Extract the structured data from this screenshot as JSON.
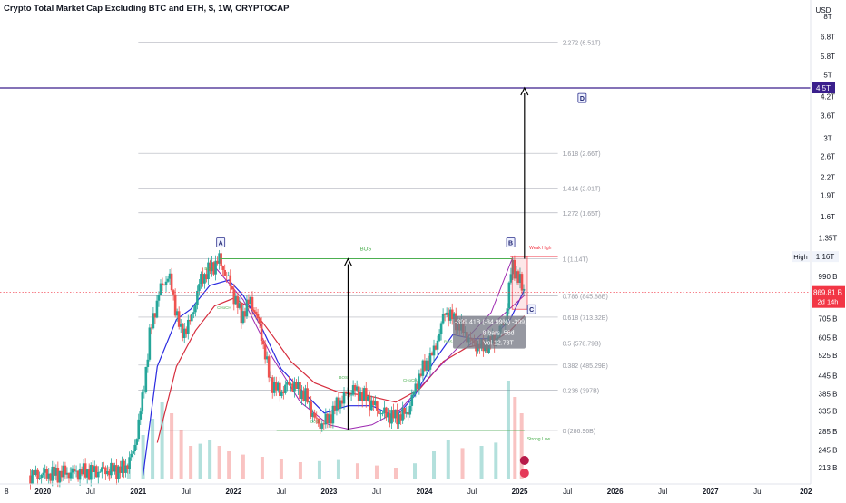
{
  "header": {
    "title": "Crypto Total Market Cap Excluding BTC and ETH, $, 1W, CRYPTOCAP",
    "currency": "USD"
  },
  "chart_data": {
    "type": "candlestick",
    "y_scale": "log",
    "ylim": [
      195000000000,
      8000000000000
    ],
    "y_ticks": [
      {
        "value": 8000000000000.0,
        "label": "8T"
      },
      {
        "value": 6800000000000.0,
        "label": "6.8T"
      },
      {
        "value": 5800000000000.0,
        "label": "5.8T"
      },
      {
        "value": 5000000000000.0,
        "label": "5T"
      },
      {
        "value": 4200000000000.0,
        "label": "4.2T"
      },
      {
        "value": 3600000000000.0,
        "label": "3.6T"
      },
      {
        "value": 3000000000000.0,
        "label": "3T"
      },
      {
        "value": 2600000000000.0,
        "label": "2.6T"
      },
      {
        "value": 2200000000000.0,
        "label": "2.2T"
      },
      {
        "value": 1900000000000.0,
        "label": "1.9T"
      },
      {
        "value": 1600000000000.0,
        "label": "1.6T"
      },
      {
        "value": 1350000000000.0,
        "label": "1.35T"
      },
      {
        "value": 990000000000.0,
        "label": "990 B"
      },
      {
        "value": 705000000000.0,
        "label": "705 B"
      },
      {
        "value": 605000000000.0,
        "label": "605 B"
      },
      {
        "value": 525000000000.0,
        "label": "525 B"
      },
      {
        "value": 445000000000.0,
        "label": "445 B"
      },
      {
        "value": 385000000000.0,
        "label": "385 B"
      },
      {
        "value": 335000000000.0,
        "label": "335 B"
      },
      {
        "value": 285000000000.0,
        "label": "285 B"
      },
      {
        "value": 245000000000.0,
        "label": "245 B"
      },
      {
        "value": 213000000000.0,
        "label": "213 B"
      }
    ],
    "x_ticks": [
      {
        "t": 2019.62,
        "label": "8"
      },
      {
        "t": 2020.0,
        "label": "2020"
      },
      {
        "t": 2020.5,
        "label": "Jul"
      },
      {
        "t": 2021.0,
        "label": "2021"
      },
      {
        "t": 2021.5,
        "label": "Jul"
      },
      {
        "t": 2022.0,
        "label": "2022"
      },
      {
        "t": 2022.5,
        "label": "Jul"
      },
      {
        "t": 2023.0,
        "label": "2023"
      },
      {
        "t": 2023.5,
        "label": "Jul"
      },
      {
        "t": 2024.0,
        "label": "2024"
      },
      {
        "t": 2024.5,
        "label": "Jul"
      },
      {
        "t": 2025.0,
        "label": "2025"
      },
      {
        "t": 2025.5,
        "label": "Jul"
      },
      {
        "t": 2026.0,
        "label": "2026"
      },
      {
        "t": 2026.5,
        "label": "Jul"
      },
      {
        "t": 2027.0,
        "label": "2027"
      },
      {
        "t": 2027.5,
        "label": "Jul"
      },
      {
        "t": 2028.0,
        "label": "202"
      }
    ],
    "xlim": [
      2019.55,
      2028.05
    ],
    "price_path": [
      [
        2019.85,
        200000000000
      ],
      [
        2020.85,
        210000000000
      ],
      [
        2020.95,
        240000000000
      ],
      [
        2021.05,
        380000000000
      ],
      [
        2021.12,
        620000000000
      ],
      [
        2021.22,
        880000000000
      ],
      [
        2021.32,
        1000000000000
      ],
      [
        2021.45,
        620000000000
      ],
      [
        2021.55,
        690000000000
      ],
      [
        2021.65,
        960000000000
      ],
      [
        2021.75,
        1050000000000
      ],
      [
        2021.85,
        1130000000000
      ],
      [
        2021.95,
        950000000000
      ],
      [
        2022.08,
        720000000000
      ],
      [
        2022.18,
        820000000000
      ],
      [
        2022.28,
        650000000000
      ],
      [
        2022.38,
        430000000000
      ],
      [
        2022.48,
        390000000000
      ],
      [
        2022.6,
        420000000000
      ],
      [
        2022.75,
        380000000000
      ],
      [
        2022.88,
        300000000000
      ],
      [
        2022.98,
        310000000000
      ],
      [
        2023.1,
        360000000000
      ],
      [
        2023.25,
        400000000000
      ],
      [
        2023.4,
        370000000000
      ],
      [
        2023.55,
        330000000000
      ],
      [
        2023.7,
        320000000000
      ],
      [
        2023.82,
        330000000000
      ],
      [
        2023.95,
        450000000000
      ],
      [
        2024.1,
        540000000000
      ],
      [
        2024.22,
        750000000000
      ],
      [
        2024.35,
        680000000000
      ],
      [
        2024.5,
        580000000000
      ],
      [
        2024.6,
        560000000000
      ],
      [
        2024.75,
        600000000000
      ],
      [
        2024.85,
        700000000000
      ],
      [
        2024.92,
        1100000000000
      ],
      [
        2024.98,
        980000000000
      ],
      [
        2025.05,
        869810000000
      ]
    ],
    "ema_fast_path": [
      [
        2021.05,
        200000000000
      ],
      [
        2021.2,
        480000000000
      ],
      [
        2021.4,
        700000000000
      ],
      [
        2021.55,
        760000000000
      ],
      [
        2021.75,
        920000000000
      ],
      [
        2021.95,
        960000000000
      ],
      [
        2022.1,
        850000000000
      ],
      [
        2022.3,
        650000000000
      ],
      [
        2022.5,
        470000000000
      ],
      [
        2022.7,
        400000000000
      ],
      [
        2022.95,
        330000000000
      ],
      [
        2023.2,
        350000000000
      ],
      [
        2023.45,
        350000000000
      ],
      [
        2023.7,
        320000000000
      ],
      [
        2023.9,
        380000000000
      ],
      [
        2024.1,
        500000000000
      ],
      [
        2024.3,
        620000000000
      ],
      [
        2024.5,
        600000000000
      ],
      [
        2024.7,
        600000000000
      ],
      [
        2024.9,
        700000000000
      ],
      [
        2025.05,
        890000000000
      ]
    ],
    "ema_slow_path": [
      [
        2021.2,
        260000000000
      ],
      [
        2021.4,
        480000000000
      ],
      [
        2021.6,
        640000000000
      ],
      [
        2021.8,
        780000000000
      ],
      [
        2022.0,
        830000000000
      ],
      [
        2022.2,
        760000000000
      ],
      [
        2022.4,
        620000000000
      ],
      [
        2022.6,
        500000000000
      ],
      [
        2022.85,
        420000000000
      ],
      [
        2023.1,
        390000000000
      ],
      [
        2023.4,
        380000000000
      ],
      [
        2023.7,
        360000000000
      ],
      [
        2023.95,
        400000000000
      ],
      [
        2024.2,
        500000000000
      ],
      [
        2024.45,
        560000000000
      ],
      [
        2024.7,
        580000000000
      ],
      [
        2024.9,
        640000000000
      ],
      [
        2025.05,
        720000000000
      ]
    ],
    "volume_scale_note": "relative",
    "volume": [
      [
        2020.1,
        0.08
      ],
      [
        2020.3,
        0.1
      ],
      [
        2020.5,
        0.12
      ],
      [
        2020.7,
        0.11
      ],
      [
        2020.9,
        0.14
      ],
      [
        2021.05,
        0.4
      ],
      [
        2021.15,
        0.55
      ],
      [
        2021.25,
        0.7
      ],
      [
        2021.35,
        0.6
      ],
      [
        2021.45,
        0.45
      ],
      [
        2021.55,
        0.3
      ],
      [
        2021.65,
        0.32
      ],
      [
        2021.75,
        0.35
      ],
      [
        2021.85,
        0.3
      ],
      [
        2021.95,
        0.25
      ],
      [
        2022.1,
        0.22
      ],
      [
        2022.3,
        0.2
      ],
      [
        2022.5,
        0.18
      ],
      [
        2022.7,
        0.15
      ],
      [
        2022.9,
        0.16
      ],
      [
        2023.1,
        0.17
      ],
      [
        2023.3,
        0.14
      ],
      [
        2023.5,
        0.12
      ],
      [
        2023.7,
        0.1
      ],
      [
        2023.9,
        0.14
      ],
      [
        2024.1,
        0.25
      ],
      [
        2024.25,
        0.35
      ],
      [
        2024.4,
        0.28
      ],
      [
        2024.6,
        0.3
      ],
      [
        2024.75,
        0.33
      ],
      [
        2024.88,
        0.9
      ],
      [
        2024.95,
        0.75
      ],
      [
        2025.02,
        0.6
      ]
    ],
    "fib_levels": [
      {
        "value": 6510000000000.0,
        "label": "2.272 (6.51T)"
      },
      {
        "value": 2660000000000.0,
        "label": "1.618 (2.66T)"
      },
      {
        "value": 2010000000000.0,
        "label": "1.414 (2.01T)"
      },
      {
        "value": 1650000000000.0,
        "label": "1.272 (1.65T)"
      },
      {
        "value": 1140000000000.0,
        "label": "1 (1.14T)"
      },
      {
        "value": 845880000000.0,
        "label": "0.786 (845.88B)"
      },
      {
        "value": 713320000000.0,
        "label": "0.618 (713.32B)"
      },
      {
        "value": 578790000000.0,
        "label": "0.5 (578.79B)"
      },
      {
        "value": 485290000000.0,
        "label": "0.382 (485.29B)"
      },
      {
        "value": 397000000000.0,
        "label": "0.236 (397B)"
      },
      {
        "value": 286960000000.0,
        "label": "0 (286.96B)"
      }
    ],
    "fib_x_range": [
      2021.0,
      2025.4
    ],
    "target_line": {
      "value": 4500000000000.0,
      "label": "4.5T"
    },
    "high_line": {
      "value": 1160000000000.0,
      "tag_left": "High",
      "tag_right": "1.16T",
      "chart_label": "Weak High"
    },
    "last_price": {
      "value": 869810000000,
      "label": "869.81 B",
      "countdown": "2d 14h"
    },
    "bos": {
      "label": "BOS",
      "value": 1140000000000.0,
      "x_range": [
        2021.85,
        2024.92
      ]
    },
    "strong_low": {
      "label": "Strong Low",
      "value": 287000000000.0,
      "x_range": [
        2022.45,
        2025.05
      ]
    },
    "points": [
      {
        "label": "A",
        "t": 2021.86,
        "value": 1300000000000.0
      },
      {
        "label": "B",
        "t": 2024.9,
        "value": 1300000000000.0
      },
      {
        "label": "C",
        "t": 2025.12,
        "value": 760000000000.0
      },
      {
        "label": "D",
        "t": 2025.65,
        "value": 4150000000000.0
      }
    ],
    "arrows": [
      {
        "t": 2023.2,
        "from": 287000000000.0,
        "to": 1140000000000.0
      },
      {
        "t": 2025.05,
        "from": 1140000000000.0,
        "to": 4500000000000.0
      }
    ],
    "measure_box": {
      "line1": "-399.41B (-34.99%) -399,410,754,910",
      "line2": "8 bars, 56d",
      "line3": "Vol 12.73T"
    },
    "small_labels": [
      {
        "text": "BOS",
        "t": 2021.74,
        "value": 1040000000000.0
      },
      {
        "text": "CHoCH",
        "t": 2021.9,
        "value": 760000000000.0
      },
      {
        "text": "BOS",
        "t": 2024.25,
        "value": 580000000000.0
      },
      {
        "text": "CHoCH",
        "t": 2023.85,
        "value": 425000000000.0
      },
      {
        "text": "BOS",
        "t": 2023.15,
        "value": 435000000000.0
      },
      {
        "text": "BOS",
        "t": 2022.85,
        "value": 305000000000.0
      }
    ]
  },
  "colors": {
    "up": "#26a69a",
    "down": "#ef5350",
    "ema_fast": "#2a2ae0",
    "ema_slow": "#d62e3e",
    "wedge": "#9c27b0",
    "fib": "#b2b5be",
    "bos": "#4caf50",
    "target": "#3a1f8c",
    "price_tag": "#f23645",
    "axis_text": "#131722",
    "grid": "#f0f3fa"
  }
}
